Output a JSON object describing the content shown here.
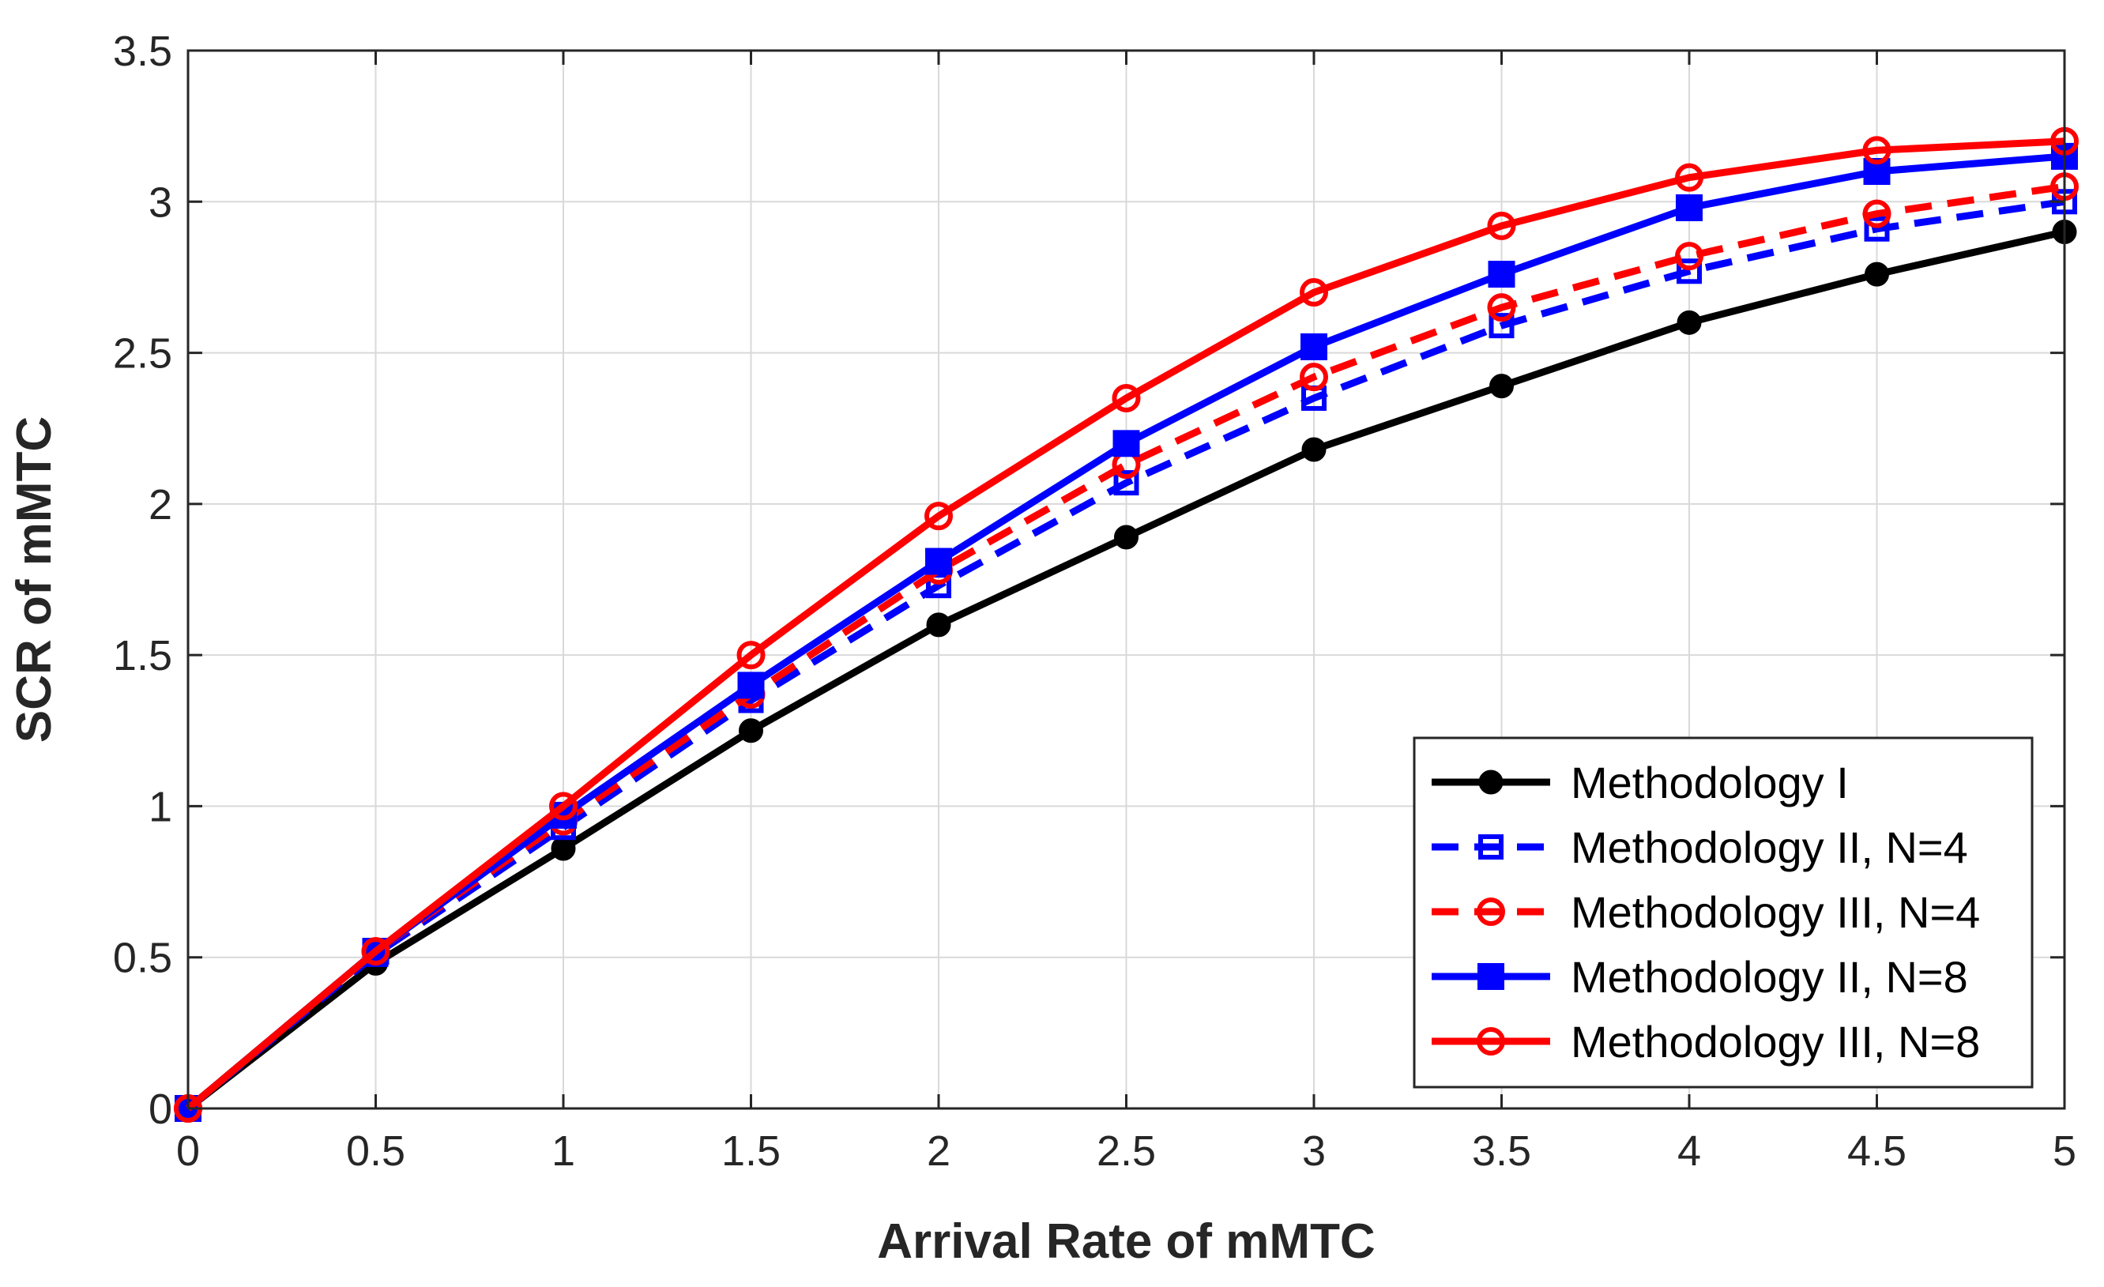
{
  "chart_data": {
    "type": "line",
    "title": "",
    "xlabel": "Arrival Rate of mMTC",
    "ylabel": "SCR of mMTC",
    "xlim": [
      0,
      5
    ],
    "ylim": [
      0,
      3.5
    ],
    "xticks": [
      0,
      0.5,
      1,
      1.5,
      2,
      2.5,
      3,
      3.5,
      4,
      4.5,
      5
    ],
    "yticks": [
      0,
      0.5,
      1,
      1.5,
      2,
      2.5,
      3,
      3.5
    ],
    "xtick_labels": [
      "0",
      "0.5",
      "1",
      "1.5",
      "2",
      "2.5",
      "3",
      "3.5",
      "4",
      "4.5",
      "5"
    ],
    "ytick_labels": [
      "0",
      "0.5",
      "1",
      "1.5",
      "2",
      "2.5",
      "3",
      "3.5"
    ],
    "grid": true,
    "legend_position": "bottom-right",
    "x": [
      0,
      0.5,
      1,
      1.5,
      2,
      2.5,
      3,
      3.5,
      4,
      4.5,
      5
    ],
    "series": [
      {
        "name": "Methodology I",
        "color": "#000000",
        "line_style": "solid",
        "marker": "filled-circle",
        "values": [
          0,
          0.48,
          0.86,
          1.25,
          1.6,
          1.89,
          2.18,
          2.39,
          2.6,
          2.76,
          2.9
        ]
      },
      {
        "name": "Methodology II, N=4",
        "color": "#0000ff",
        "line_style": "dashed",
        "marker": "open-square",
        "values": [
          0,
          0.51,
          0.93,
          1.35,
          1.73,
          2.07,
          2.35,
          2.59,
          2.77,
          2.91,
          3.0
        ]
      },
      {
        "name": "Methodology III, N=4",
        "color": "#ff0000",
        "line_style": "dashed",
        "marker": "open-circle",
        "values": [
          0,
          0.52,
          0.95,
          1.37,
          1.78,
          2.13,
          2.42,
          2.65,
          2.82,
          2.96,
          3.05
        ]
      },
      {
        "name": "Methodology II, N=8",
        "color": "#0000ff",
        "line_style": "solid",
        "marker": "filled-square",
        "values": [
          0,
          0.52,
          0.97,
          1.4,
          1.81,
          2.2,
          2.52,
          2.76,
          2.98,
          3.1,
          3.15
        ]
      },
      {
        "name": "Methodology III, N=8",
        "color": "#ff0000",
        "line_style": "solid",
        "marker": "open-circle",
        "values": [
          0,
          0.52,
          1.0,
          1.5,
          1.96,
          2.35,
          2.7,
          2.92,
          3.08,
          3.17,
          3.2
        ]
      }
    ]
  }
}
